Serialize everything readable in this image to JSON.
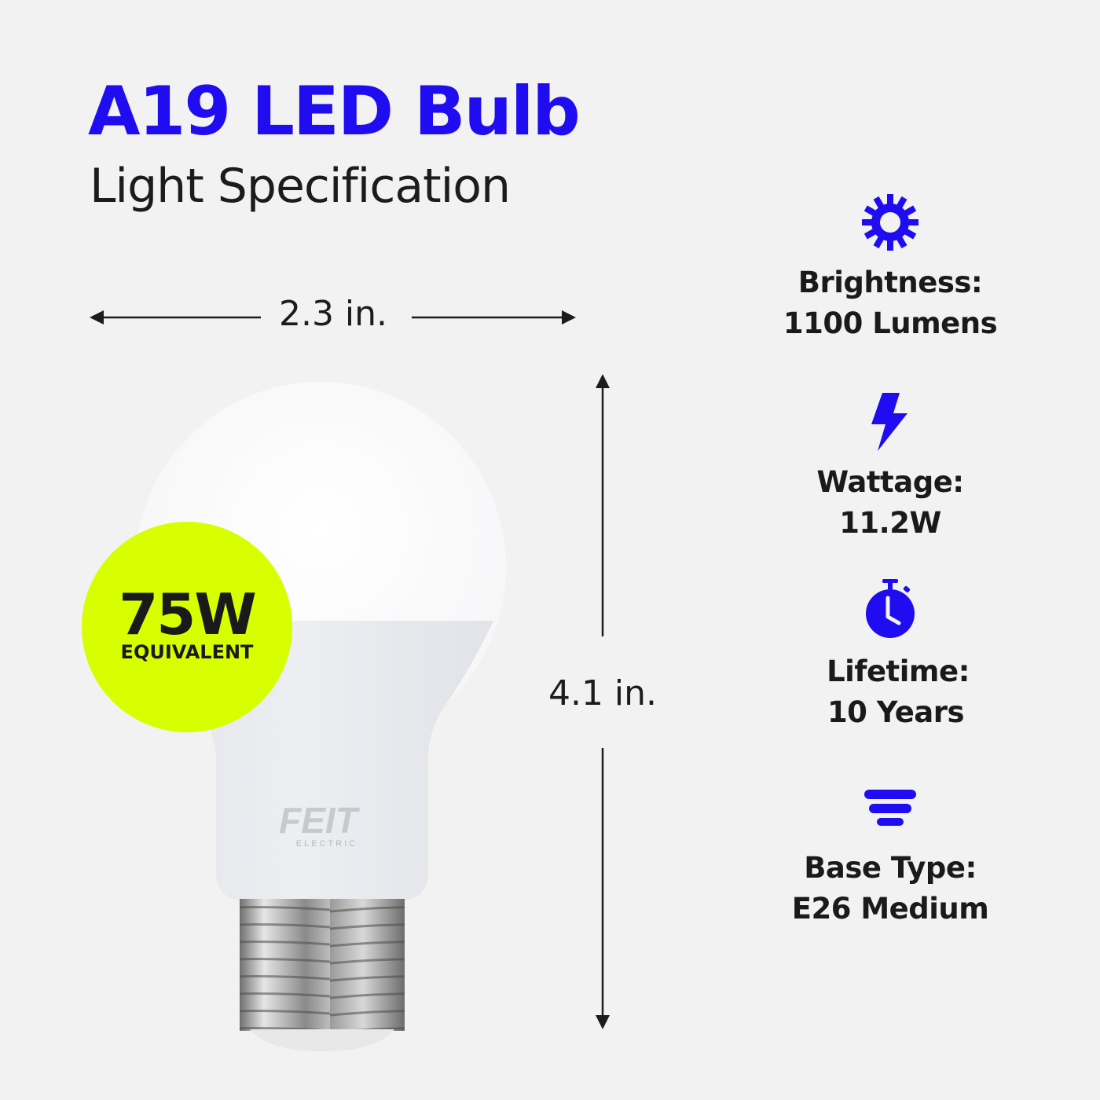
{
  "header": {
    "title": "A19 LED Bulb",
    "subtitle": "Light Specification"
  },
  "dimensions": {
    "width": "2.3 in.",
    "height": "4.1 in."
  },
  "badge": {
    "value": "75W",
    "label": "EQUIVALENT",
    "color": "#d8ff00"
  },
  "product": {
    "brand": "FEIT",
    "brand_sub": "ELECTRIC"
  },
  "accent_color": "#1f0cf0",
  "specs": [
    {
      "icon": "sun-icon",
      "label": "Brightness:",
      "value": "1100 Lumens"
    },
    {
      "icon": "lightning-bolt-icon",
      "label": "Wattage:",
      "value": "11.2W"
    },
    {
      "icon": "stopwatch-icon",
      "label": "Lifetime:",
      "value": "10 Years"
    },
    {
      "icon": "bulb-base-icon",
      "label": "Base Type:",
      "value": "E26 Medium"
    }
  ]
}
